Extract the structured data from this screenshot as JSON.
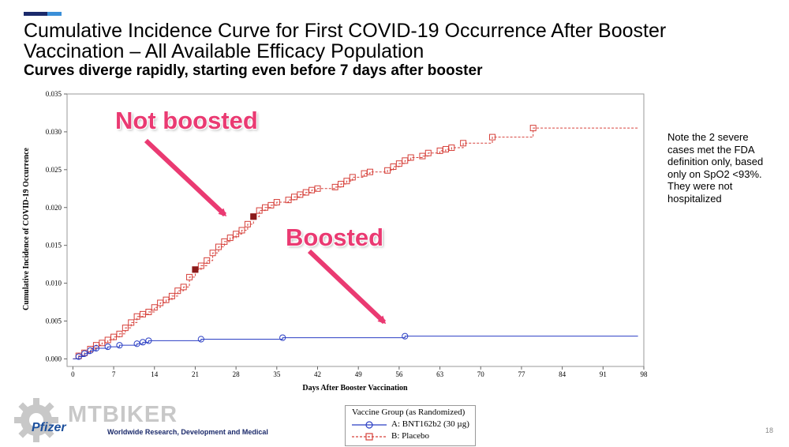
{
  "header": {
    "title": "Cumulative Incidence Curve for First COVID-19 Occurrence After Booster Vaccination – All Available Efficacy Population",
    "subtitle": "Curves diverge rapidly, starting even before 7 days after booster"
  },
  "note": "Note the 2 severe cases met the FDA definition only, based only on SpO2 <93%. They were not hospitalized",
  "annotations": {
    "not_boosted": "Not boosted",
    "boosted": "Boosted"
  },
  "legend": {
    "title": "Vaccine Group (as Randomized)",
    "a_label": "A: BNT162b2 (30 µg)",
    "b_label": "B: Placebo"
  },
  "footer": {
    "watermark": "MTBIKER",
    "logo": "Pfizer",
    "text": "Worldwide Research, Development and Medical",
    "page_number": "18"
  },
  "colors": {
    "vaccine": "#2b3fc4",
    "placebo": "#d6403a",
    "severe": "#8b1a1a",
    "annotation": "#ea3a72"
  },
  "chart_data": {
    "type": "line",
    "xlabel": "Days After Booster Vaccination",
    "ylabel": "Cumulative Incidence of COVID-19 Occurrence",
    "xlim": [
      -1,
      98
    ],
    "ylim": [
      -0.001,
      0.035
    ],
    "xticks": [
      0,
      7,
      14,
      21,
      28,
      35,
      42,
      49,
      56,
      63,
      70,
      77,
      84,
      91,
      98
    ],
    "yticks": [
      0.0,
      0.005,
      0.01,
      0.015,
      0.02,
      0.025,
      0.03,
      0.035
    ],
    "ytick_labels": [
      "0.000",
      "0.005",
      "0.010",
      "0.015",
      "0.020",
      "0.025",
      "0.030",
      "0.035"
    ],
    "series": [
      {
        "name": "A: BNT162b2 (30 µg)",
        "style": "solid",
        "marker": "circle",
        "end_x": 97,
        "points": [
          [
            1,
            0.0003
          ],
          [
            2,
            0.0007
          ],
          [
            3,
            0.0011
          ],
          [
            4,
            0.0014
          ],
          [
            6,
            0.0016
          ],
          [
            8,
            0.0018
          ],
          [
            11,
            0.002
          ],
          [
            12,
            0.0022
          ],
          [
            13,
            0.0024
          ],
          [
            22,
            0.0026
          ],
          [
            36,
            0.0028
          ],
          [
            57,
            0.003
          ]
        ]
      },
      {
        "name": "B: Placebo",
        "style": "dashed",
        "marker": "square",
        "end_x": 97,
        "points": [
          [
            1,
            0.0004
          ],
          [
            2,
            0.0008
          ],
          [
            3,
            0.0013
          ],
          [
            4,
            0.0018
          ],
          [
            5,
            0.0021
          ],
          [
            6,
            0.0025
          ],
          [
            7,
            0.0029
          ],
          [
            8,
            0.0033
          ],
          [
            9,
            0.0041
          ],
          [
            10,
            0.0048
          ],
          [
            11,
            0.0056
          ],
          [
            12,
            0.0059
          ],
          [
            13,
            0.0062
          ],
          [
            14,
            0.0068
          ],
          [
            15,
            0.0074
          ],
          [
            16,
            0.0078
          ],
          [
            17,
            0.0083
          ],
          [
            18,
            0.009
          ],
          [
            19,
            0.0095
          ],
          [
            20,
            0.0108
          ],
          [
            21,
            0.0118
          ],
          [
            22,
            0.0123
          ],
          [
            23,
            0.013
          ],
          [
            24,
            0.014
          ],
          [
            25,
            0.0148
          ],
          [
            26,
            0.0155
          ],
          [
            27,
            0.016
          ],
          [
            28,
            0.0165
          ],
          [
            29,
            0.017
          ],
          [
            30,
            0.0178
          ],
          [
            31,
            0.0188
          ],
          [
            32,
            0.0196
          ],
          [
            33,
            0.02
          ],
          [
            34,
            0.0203
          ],
          [
            35,
            0.0207
          ],
          [
            37,
            0.021
          ],
          [
            38,
            0.0214
          ],
          [
            39,
            0.0217
          ],
          [
            40,
            0.022
          ],
          [
            41,
            0.0223
          ],
          [
            42,
            0.0225
          ],
          [
            45,
            0.0227
          ],
          [
            46,
            0.0231
          ],
          [
            47,
            0.0235
          ],
          [
            48,
            0.024
          ],
          [
            50,
            0.0245
          ],
          [
            51,
            0.0247
          ],
          [
            54,
            0.0249
          ],
          [
            55,
            0.0254
          ],
          [
            56,
            0.0258
          ],
          [
            57,
            0.0262
          ],
          [
            58,
            0.0266
          ],
          [
            60,
            0.0268
          ],
          [
            61,
            0.0272
          ],
          [
            63,
            0.0275
          ],
          [
            64,
            0.0277
          ],
          [
            65,
            0.0279
          ],
          [
            67,
            0.0285
          ],
          [
            72,
            0.0293
          ],
          [
            79,
            0.0305
          ]
        ]
      }
    ],
    "severe_cases": [
      [
        21,
        0.0118
      ],
      [
        31,
        0.0188
      ]
    ]
  }
}
